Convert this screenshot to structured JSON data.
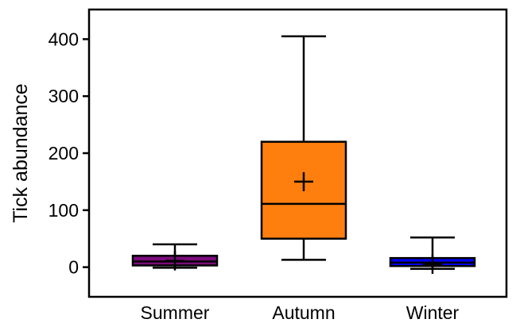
{
  "chart_data": {
    "type": "box",
    "title": "",
    "xlabel": "",
    "ylabel": "Tick abundance",
    "ylim": [
      -52,
      452
    ],
    "yticks": [
      0,
      100,
      200,
      300,
      400
    ],
    "grid": false,
    "legend": "none",
    "categories": [
      "Summer",
      "Autumn",
      "Winter"
    ],
    "boxes": [
      {
        "name": "Summer",
        "min": -1,
        "q1": 3,
        "median": 10,
        "q3": 20,
        "max": 40,
        "mean": 11,
        "color": "#7b0c7d"
      },
      {
        "name": "Autumn",
        "min": 13,
        "q1": 50,
        "median": 111,
        "q3": 220,
        "max": 405,
        "mean": 150,
        "color": "#fe7f0e"
      },
      {
        "name": "Winter",
        "min": -3,
        "q1": 2,
        "median": 8,
        "q3": 16,
        "max": 52,
        "mean": 5,
        "color": "#0000ff"
      }
    ]
  }
}
